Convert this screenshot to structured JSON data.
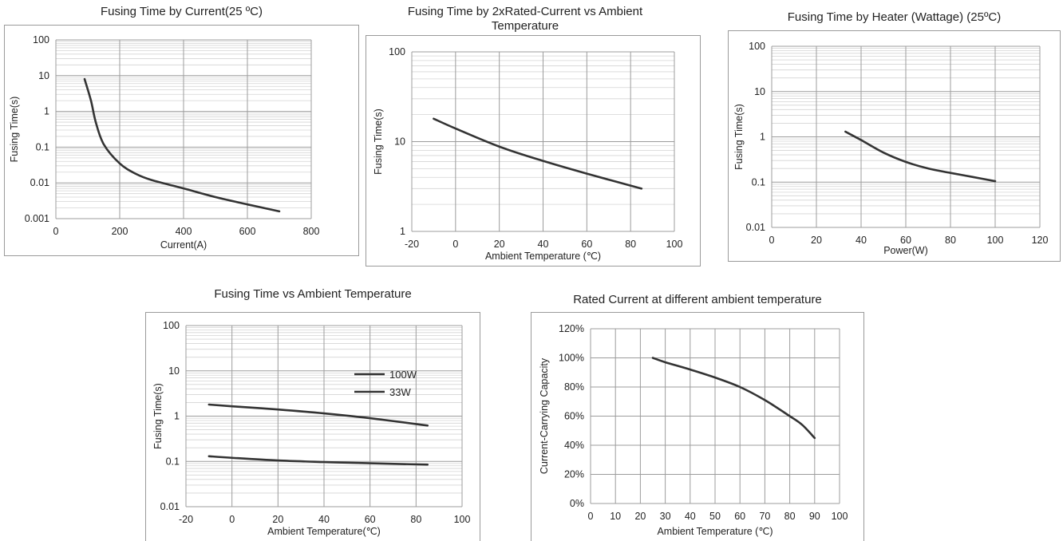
{
  "chart_data": [
    {
      "id": "c1",
      "type": "line",
      "title": "Fusing Time by Current(25 ºC)",
      "xlabel": "Current(A)",
      "ylabel": "Fusing Time(s)",
      "xlim": [
        0,
        800
      ],
      "xticks": [
        0,
        200,
        400,
        600,
        800
      ],
      "ylog": true,
      "ylim": [
        0.001,
        100
      ],
      "yticks": [
        0.001,
        0.01,
        0.1,
        1,
        10,
        100
      ],
      "yticklabels": [
        "0.001",
        "0.01",
        "0.1",
        "1",
        "10",
        "100"
      ],
      "grid": true,
      "series": [
        {
          "x": [
            90,
            110,
            125,
            150,
            200,
            250,
            300,
            400,
            500,
            600,
            700
          ],
          "y": [
            8,
            2,
            0.5,
            0.12,
            0.035,
            0.018,
            0.012,
            0.007,
            0.004,
            0.0025,
            0.0016
          ]
        }
      ]
    },
    {
      "id": "c2",
      "type": "line",
      "title": "Fusing Time by 2xRated-Current vs Ambient Temperature",
      "title_lines": [
        "Fusing Time by 2xRated-Current vs Ambient",
        "Temperature"
      ],
      "xlabel": "Ambient Temperature (℃)",
      "ylabel": "Fusing Time(s)",
      "xlim": [
        -20,
        100
      ],
      "xticks": [
        -20,
        0,
        20,
        40,
        60,
        80,
        100
      ],
      "ylog": true,
      "ylim": [
        1,
        100
      ],
      "yticks": [
        1,
        10,
        100
      ],
      "yticklabels": [
        "1",
        "10",
        "100"
      ],
      "grid": true,
      "series": [
        {
          "x": [
            -10,
            0,
            20,
            40,
            60,
            85
          ],
          "y": [
            18,
            14,
            8.8,
            6.1,
            4.4,
            3.0
          ]
        }
      ]
    },
    {
      "id": "c3",
      "type": "line",
      "title": "Fusing Time by Heater (Wattage) (25ºC)",
      "xlabel": "Power(W)",
      "ylabel": "Fusing Time(s)",
      "xlim": [
        0,
        120
      ],
      "xticks": [
        0,
        20,
        40,
        60,
        80,
        100,
        120
      ],
      "ylog": true,
      "ylim": [
        0.01,
        100
      ],
      "yticks": [
        0.01,
        0.1,
        1,
        10,
        100
      ],
      "yticklabels": [
        "0.01",
        "0.1",
        "1",
        "10",
        "100"
      ],
      "grid": true,
      "series": [
        {
          "x": [
            33,
            40,
            50,
            60,
            70,
            80,
            90,
            100
          ],
          "y": [
            1.3,
            0.85,
            0.45,
            0.28,
            0.2,
            0.16,
            0.13,
            0.105
          ]
        }
      ]
    },
    {
      "id": "c4",
      "type": "line",
      "title": "Fusing Time vs Ambient Temperature",
      "xlabel": "Ambient Temperature(℃)",
      "ylabel": "Fusing Time(s)",
      "xlim": [
        -20,
        100
      ],
      "xticks": [
        -20,
        0,
        20,
        40,
        60,
        80,
        100
      ],
      "ylog": true,
      "ylim": [
        0.01,
        100
      ],
      "yticks": [
        0.01,
        0.1,
        1,
        10,
        100
      ],
      "yticklabels": [
        "0.01",
        "0.1",
        "1",
        "10",
        "100"
      ],
      "grid": true,
      "legend": "top-right",
      "series": [
        {
          "name": "100W",
          "x": [
            -10,
            0,
            20,
            40,
            60,
            85
          ],
          "y": [
            0.13,
            0.12,
            0.105,
            0.097,
            0.091,
            0.085
          ]
        },
        {
          "name": "33W",
          "x": [
            -10,
            0,
            20,
            40,
            60,
            85
          ],
          "y": [
            1.8,
            1.65,
            1.4,
            1.15,
            0.9,
            0.62
          ]
        }
      ]
    },
    {
      "id": "c5",
      "type": "line",
      "title": "Rated Current at different ambient temperature",
      "xlabel": "Ambient Temperature (℃)",
      "ylabel": "Current-Carrying Capacity",
      "xlim": [
        0,
        100
      ],
      "xticks": [
        0,
        10,
        20,
        30,
        40,
        50,
        60,
        70,
        80,
        90,
        100
      ],
      "ylog": false,
      "ylim": [
        0,
        120
      ],
      "yticks": [
        0,
        20,
        40,
        60,
        80,
        100,
        120
      ],
      "yticklabels": [
        "0%",
        "20%",
        "40%",
        "60%",
        "80%",
        "100%",
        "120%"
      ],
      "grid": true,
      "series": [
        {
          "x": [
            25,
            30,
            40,
            50,
            60,
            70,
            80,
            85,
            90
          ],
          "y": [
            100,
            97,
            92,
            86.5,
            80,
            71,
            60,
            54,
            45
          ]
        }
      ]
    }
  ]
}
